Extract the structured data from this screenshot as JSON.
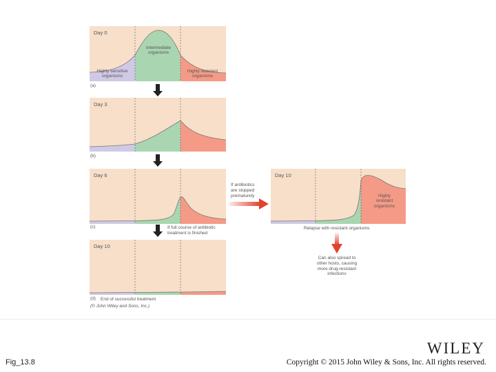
{
  "panels": {
    "a": {
      "day": "Day 0",
      "letter": "(a)",
      "intermediate": [
        "Intermediate",
        "organisms"
      ],
      "sensitive": [
        "Highly sensitive",
        "organisms"
      ],
      "resistant": [
        "Highly resistant",
        "organisms"
      ]
    },
    "b": {
      "day": "Day 3",
      "letter": "(b)"
    },
    "c": {
      "day": "Day 6",
      "letter": "(c)"
    },
    "d": {
      "day": "Day 10",
      "letter": "(d)"
    },
    "e": {
      "day": "Day 10",
      "resistant": [
        "Highly",
        "resistant",
        "organisms"
      ]
    }
  },
  "notes": {
    "stopped": [
      "If antibiotics",
      "are stopped",
      "prematurely"
    ],
    "finished": [
      "If full course of antibiotic",
      "treatment is finished"
    ],
    "relapse": "Relapse with resistant organisms",
    "spread": [
      "Can also spread to",
      "other hosts, causing",
      "more drug-resistant",
      "infections"
    ],
    "end": "End of successful treatment",
    "credit": "(© John Wiley and Sons, Inc.)"
  },
  "colors": {
    "background": "#f8dfc9",
    "sensitive": "#cfc9e6",
    "intermediate": "#a9d6b1",
    "resistant": "#f59a86",
    "arrow_red": "#e2432d"
  },
  "footer": {
    "figure_label": "Fig_13.8",
    "logo": "WILEY",
    "copyright": "Copyright © 2015 John Wiley & Sons, Inc. All rights reserved."
  }
}
